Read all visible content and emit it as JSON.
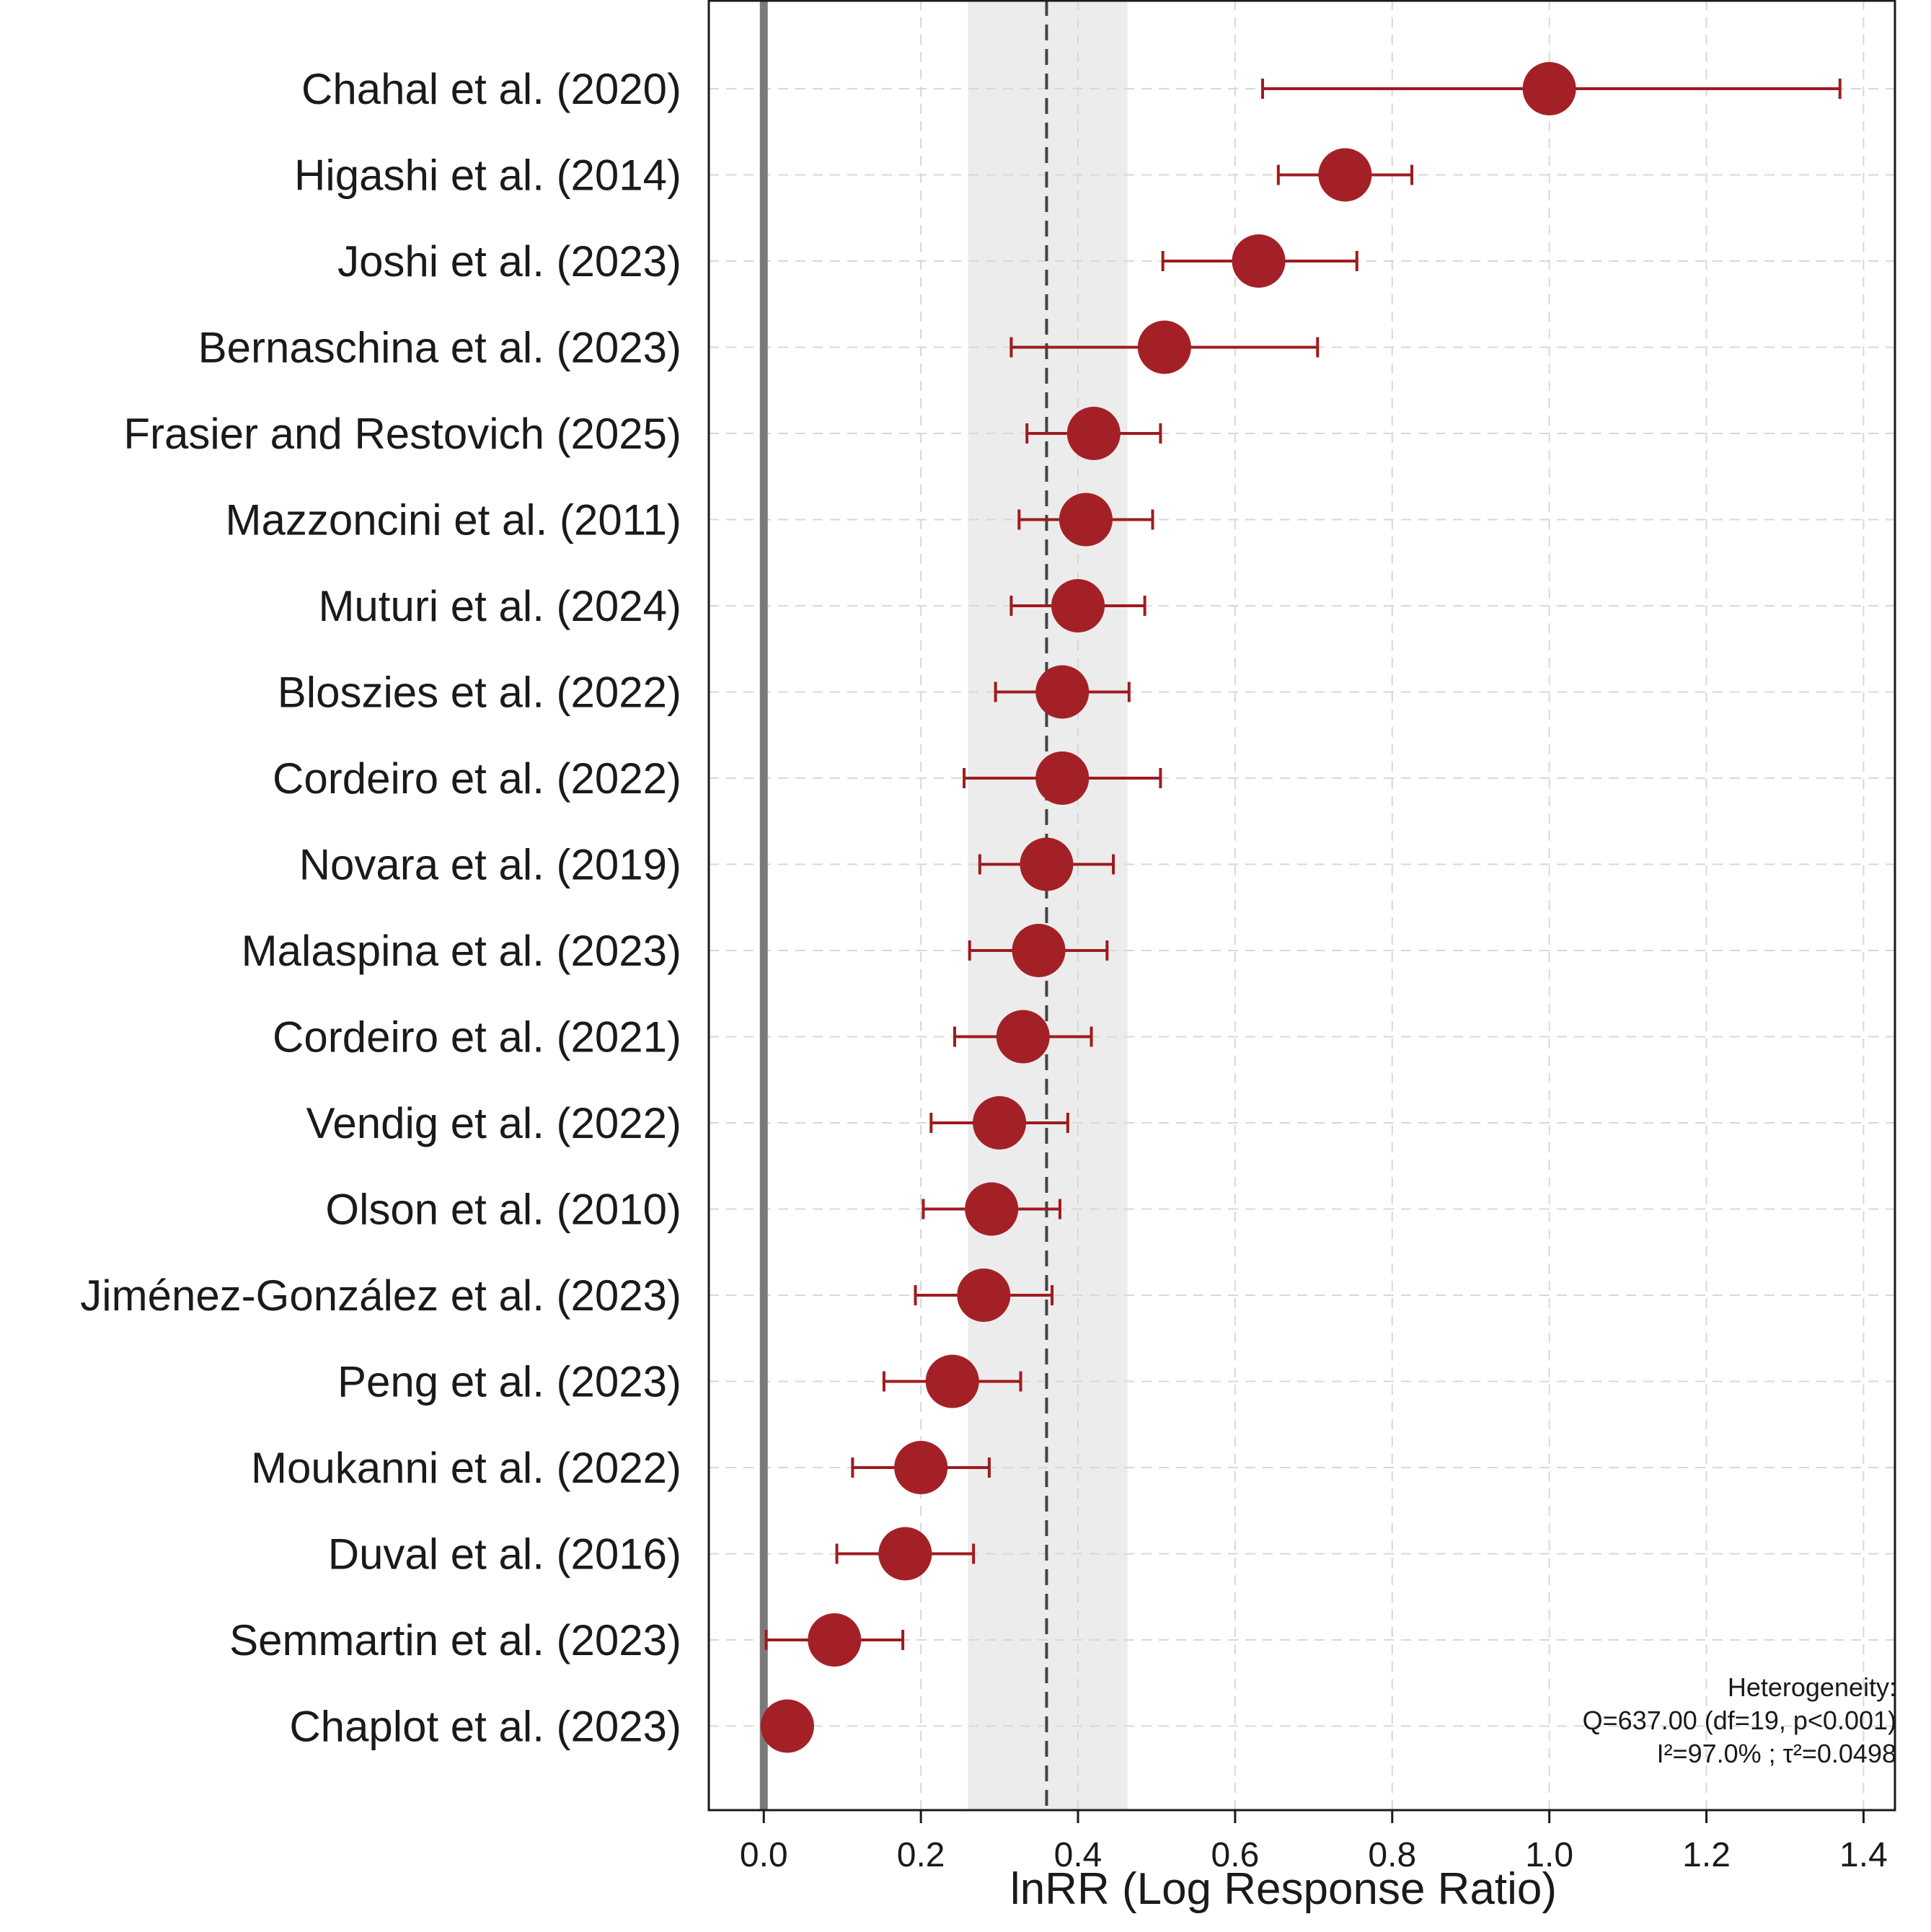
{
  "chart_data": {
    "type": "forest",
    "xlabel": "lnRR (Log Response Ratio)",
    "ylabel": "",
    "xlim": [
      -0.07,
      1.44
    ],
    "xticks": [
      0.0,
      0.2,
      0.4,
      0.6,
      0.8,
      1.0,
      1.2,
      1.4
    ],
    "xtick_labels": [
      "0.0",
      "0.2",
      "0.4",
      "0.6",
      "0.8",
      "1.0",
      "1.2",
      "1.4"
    ],
    "grid": true,
    "reference_line": 0.0,
    "pooled": {
      "estimate": 0.36,
      "ci_lower": 0.26,
      "ci_upper": 0.463
    },
    "heterogeneity": {
      "line1": "Heterogeneity:",
      "line2": "Q=637.00 (df=19, p<0.001)",
      "line3": "I²=97.0% ; τ²=0.0498"
    },
    "studies": [
      {
        "label": "Chahal et al. (2020)",
        "estimate": 1.0,
        "ci_lower": 0.635,
        "ci_upper": 1.37
      },
      {
        "label": "Higashi et al. (2014)",
        "estimate": 0.74,
        "ci_lower": 0.655,
        "ci_upper": 0.825
      },
      {
        "label": "Joshi et al. (2023)",
        "estimate": 0.63,
        "ci_lower": 0.508,
        "ci_upper": 0.755
      },
      {
        "label": "Bernaschina et al. (2023)",
        "estimate": 0.51,
        "ci_lower": 0.315,
        "ci_upper": 0.705
      },
      {
        "label": "Frasier and Restovich (2025)",
        "estimate": 0.42,
        "ci_lower": 0.335,
        "ci_upper": 0.505
      },
      {
        "label": "Mazzoncini et al. (2011)",
        "estimate": 0.41,
        "ci_lower": 0.325,
        "ci_upper": 0.495
      },
      {
        "label": "Muturi et al. (2024)",
        "estimate": 0.4,
        "ci_lower": 0.315,
        "ci_upper": 0.485
      },
      {
        "label": "Bloszies et al. (2022)",
        "estimate": 0.38,
        "ci_lower": 0.295,
        "ci_upper": 0.465
      },
      {
        "label": "Cordeiro et al. (2022)",
        "estimate": 0.38,
        "ci_lower": 0.255,
        "ci_upper": 0.505
      },
      {
        "label": "Novara et al. (2019)",
        "estimate": 0.36,
        "ci_lower": 0.275,
        "ci_upper": 0.445
      },
      {
        "label": "Malaspina et al. (2023)",
        "estimate": 0.35,
        "ci_lower": 0.262,
        "ci_upper": 0.437
      },
      {
        "label": "Cordeiro et al. (2021)",
        "estimate": 0.33,
        "ci_lower": 0.243,
        "ci_upper": 0.417
      },
      {
        "label": "Vendig et al. (2022)",
        "estimate": 0.3,
        "ci_lower": 0.213,
        "ci_upper": 0.387
      },
      {
        "label": "Olson et al. (2010)",
        "estimate": 0.29,
        "ci_lower": 0.203,
        "ci_upper": 0.377
      },
      {
        "label": "Jiménez-González et al. (2023)",
        "estimate": 0.28,
        "ci_lower": 0.193,
        "ci_upper": 0.367
      },
      {
        "label": "Peng et al. (2023)",
        "estimate": 0.24,
        "ci_lower": 0.153,
        "ci_upper": 0.327
      },
      {
        "label": "Moukanni et al. (2022)",
        "estimate": 0.2,
        "ci_lower": 0.113,
        "ci_upper": 0.287
      },
      {
        "label": "Duval et al. (2016)",
        "estimate": 0.18,
        "ci_lower": 0.093,
        "ci_upper": 0.267
      },
      {
        "label": "Semmartin et al. (2023)",
        "estimate": 0.09,
        "ci_lower": 0.003,
        "ci_upper": 0.177
      },
      {
        "label": "Chaplot et al. (2023)",
        "estimate": 0.03,
        "ci_lower": 0.03,
        "ci_upper": 0.03
      }
    ],
    "colors": {
      "marker": "#a32126",
      "ci_line": "#9e1b1f",
      "reference_line": "#7a7a7a",
      "pooled_line": "#444444",
      "pooled_band": "#ececec",
      "grid": "#d8d8d8"
    }
  }
}
